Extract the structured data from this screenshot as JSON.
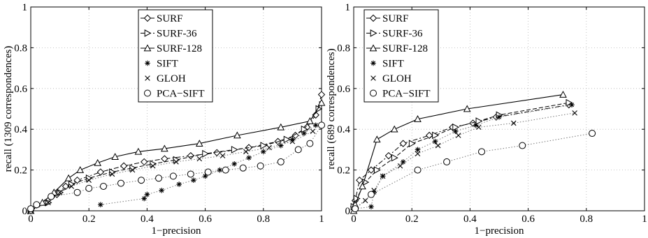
{
  "chart_data": [
    {
      "type": "line",
      "xlabel": "1−precision",
      "ylabel": "recall (1309 correspondences)",
      "xlim": [
        0,
        1
      ],
      "ylim": [
        0,
        1
      ],
      "xticks": [
        "0",
        "0.2",
        "0.4",
        "0.6",
        "0.8",
        "1"
      ],
      "yticks": [
        "0",
        "0.2",
        "0.4",
        "0.6",
        "0.8",
        "1"
      ],
      "grid": true,
      "legend_position": "top-center",
      "series": [
        {
          "name": "SURF",
          "marker": "diamond",
          "line": "dashdot",
          "x": [
            0.0,
            0.05,
            0.09,
            0.12,
            0.16,
            0.24,
            0.32,
            0.39,
            0.46,
            0.55,
            0.64,
            0.75,
            0.85,
            0.91,
            0.95,
            0.98,
            1.0
          ],
          "y": [
            0.0,
            0.04,
            0.08,
            0.12,
            0.15,
            0.19,
            0.22,
            0.24,
            0.255,
            0.27,
            0.285,
            0.31,
            0.34,
            0.37,
            0.41,
            0.47,
            0.57
          ]
        },
        {
          "name": "SURF-36",
          "marker": "triangle-right",
          "line": "dashed",
          "x": [
            0.0,
            0.06,
            0.1,
            0.14,
            0.2,
            0.28,
            0.35,
            0.42,
            0.5,
            0.6,
            0.7,
            0.8,
            0.88,
            0.94,
            0.99
          ],
          "y": [
            0.0,
            0.04,
            0.09,
            0.13,
            0.16,
            0.19,
            0.21,
            0.23,
            0.25,
            0.28,
            0.3,
            0.32,
            0.35,
            0.4,
            0.5
          ]
        },
        {
          "name": "SURF-128",
          "marker": "triangle-up",
          "line": "solid",
          "x": [
            0.0,
            0.04,
            0.08,
            0.13,
            0.17,
            0.23,
            0.29,
            0.37,
            0.46,
            0.58,
            0.71,
            0.86,
            0.96,
            1.0
          ],
          "y": [
            0.0,
            0.04,
            0.09,
            0.16,
            0.2,
            0.235,
            0.265,
            0.29,
            0.305,
            0.33,
            0.37,
            0.41,
            0.44,
            0.53
          ]
        },
        {
          "name": "SIFT",
          "marker": "asterisk",
          "line": "dotted",
          "x": [
            0.24,
            0.39,
            0.4,
            0.45,
            0.51,
            0.56,
            0.6,
            0.65,
            0.7,
            0.75,
            0.8,
            0.86,
            0.9,
            0.94,
            0.98
          ],
          "y": [
            0.03,
            0.06,
            0.08,
            0.1,
            0.13,
            0.15,
            0.17,
            0.2,
            0.23,
            0.26,
            0.29,
            0.32,
            0.35,
            0.38,
            0.42
          ]
        },
        {
          "name": "GLOH",
          "marker": "x",
          "line": "dotted",
          "x": [
            0.0,
            0.06,
            0.1,
            0.14,
            0.2,
            0.28,
            0.35,
            0.42,
            0.5,
            0.58,
            0.66,
            0.74,
            0.82,
            0.9,
            0.97
          ],
          "y": [
            0.0,
            0.04,
            0.09,
            0.12,
            0.15,
            0.18,
            0.2,
            0.22,
            0.24,
            0.255,
            0.27,
            0.29,
            0.31,
            0.34,
            0.39
          ]
        },
        {
          "name": "PCA−SIFT",
          "marker": "circle",
          "line": "dotted",
          "x": [
            0.0,
            0.02,
            0.07,
            0.16,
            0.2,
            0.25,
            0.31,
            0.38,
            0.44,
            0.49,
            0.55,
            0.61,
            0.67,
            0.73,
            0.79,
            0.86,
            0.92,
            0.96,
            1.0
          ],
          "y": [
            0.01,
            0.03,
            0.07,
            0.09,
            0.11,
            0.12,
            0.135,
            0.15,
            0.16,
            0.17,
            0.18,
            0.19,
            0.2,
            0.21,
            0.22,
            0.24,
            0.3,
            0.33,
            0.42
          ]
        }
      ]
    },
    {
      "type": "line",
      "xlabel": "1−precision",
      "ylabel": "recall (689 correspondences)",
      "xlim": [
        0,
        1
      ],
      "ylim": [
        0,
        1
      ],
      "xticks": [
        "0",
        "0.2",
        "0.4",
        "0.6",
        "0.8",
        "1"
      ],
      "yticks": [
        "0",
        "0.2",
        "0.4",
        "0.6",
        "0.8",
        "1"
      ],
      "grid": true,
      "legend_position": "top-left",
      "series": [
        {
          "name": "SURF",
          "marker": "diamond",
          "line": "dashdot",
          "x": [
            0.0,
            0.005,
            0.02,
            0.06,
            0.12,
            0.17,
            0.26,
            0.34,
            0.41,
            0.49,
            0.74
          ],
          "y": [
            0.02,
            0.05,
            0.15,
            0.2,
            0.27,
            0.33,
            0.37,
            0.41,
            0.43,
            0.46,
            0.52
          ]
        },
        {
          "name": "SURF-36",
          "marker": "triangle-right",
          "line": "dashed",
          "x": [
            0.0,
            0.01,
            0.04,
            0.08,
            0.14,
            0.2,
            0.28,
            0.35,
            0.43,
            0.5,
            0.74
          ],
          "y": [
            0.02,
            0.06,
            0.14,
            0.2,
            0.26,
            0.33,
            0.37,
            0.41,
            0.44,
            0.47,
            0.53
          ]
        },
        {
          "name": "SURF-128",
          "marker": "triangle-up",
          "line": "solid",
          "x": [
            0.0,
            0.005,
            0.03,
            0.08,
            0.14,
            0.22,
            0.39,
            0.72
          ],
          "y": [
            0.0,
            0.03,
            0.12,
            0.35,
            0.4,
            0.45,
            0.5,
            0.57
          ]
        },
        {
          "name": "SIFT",
          "marker": "asterisk",
          "line": "dotted",
          "x": [
            0.005,
            0.06,
            0.07,
            0.1,
            0.17,
            0.22,
            0.28,
            0.35,
            0.42,
            0.5,
            0.75
          ],
          "y": [
            0.01,
            0.02,
            0.09,
            0.17,
            0.24,
            0.3,
            0.34,
            0.39,
            0.42,
            0.46,
            0.52
          ]
        },
        {
          "name": "GLOH",
          "marker": "x",
          "line": "dotted",
          "x": [
            0.005,
            0.04,
            0.07,
            0.1,
            0.16,
            0.22,
            0.29,
            0.36,
            0.43,
            0.55,
            0.76
          ],
          "y": [
            0.01,
            0.05,
            0.1,
            0.17,
            0.22,
            0.28,
            0.32,
            0.37,
            0.41,
            0.43,
            0.48
          ]
        },
        {
          "name": "PCA−SIFT",
          "marker": "circle",
          "line": "dotted",
          "x": [
            0.005,
            0.06,
            0.22,
            0.32,
            0.44,
            0.58,
            0.82
          ],
          "y": [
            0.01,
            0.08,
            0.2,
            0.24,
            0.29,
            0.32,
            0.38
          ]
        }
      ]
    }
  ]
}
